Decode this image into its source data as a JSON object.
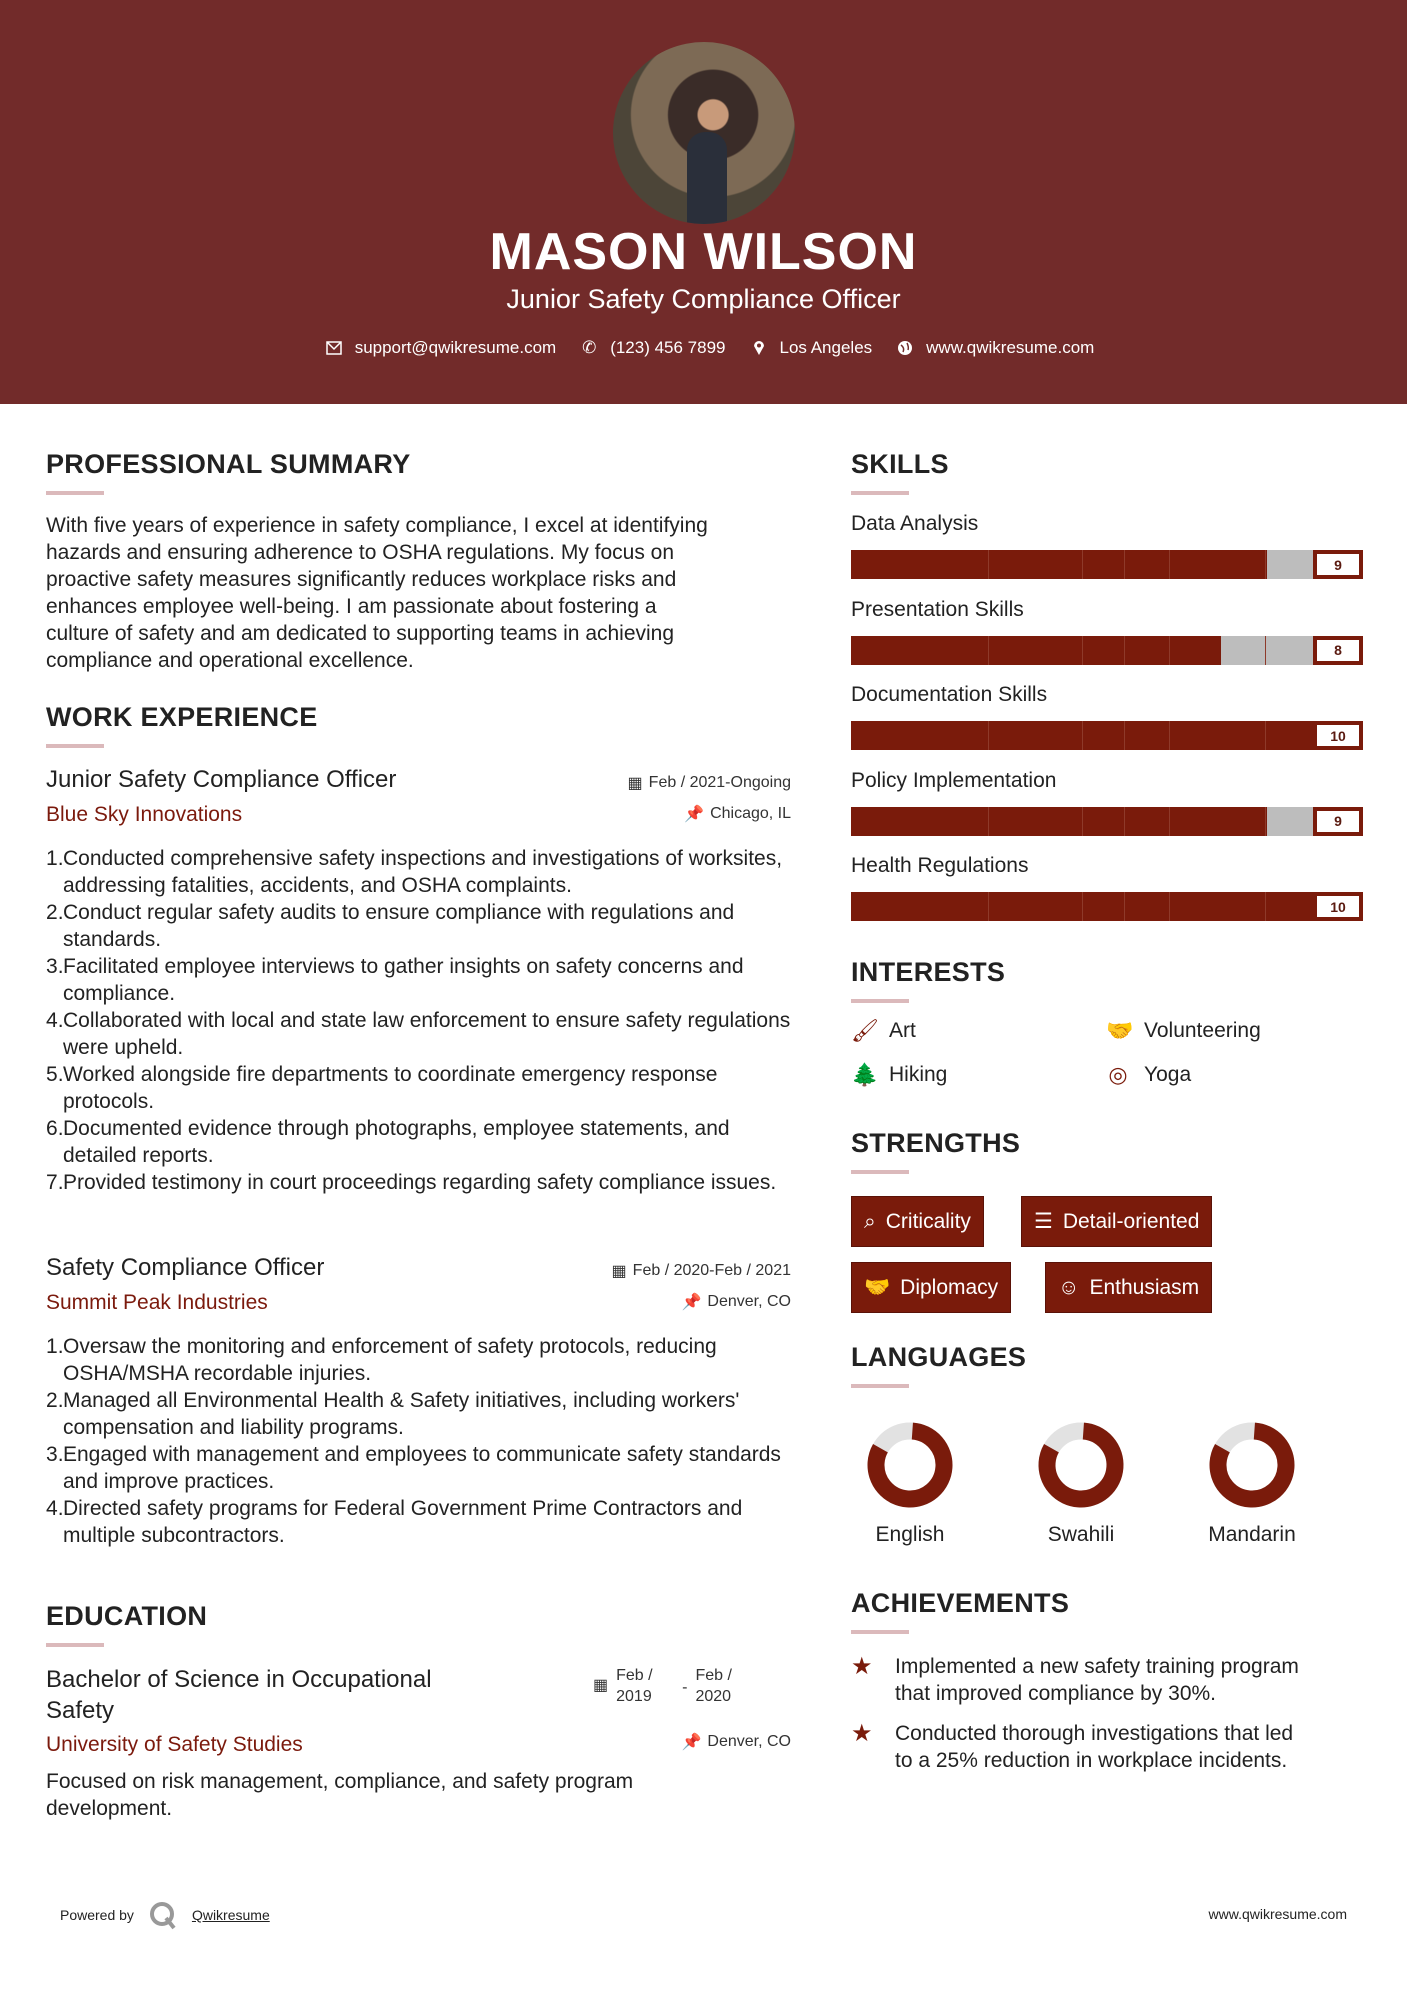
{
  "header": {
    "name": "MASON WILSON",
    "title": "Junior Safety Compliance Officer",
    "contact": {
      "email": "support@qwikresume.com",
      "phone": "(123) 456 7899",
      "location": "Los Angeles",
      "website": "www.qwikresume.com"
    }
  },
  "colors": {
    "header": "#722b2a",
    "accent": "#7a1b0b",
    "underline": "#dbb9bb",
    "empty": "#bdbdbd"
  },
  "summary": {
    "heading": "PROFESSIONAL SUMMARY",
    "lines": [
      "With five years of experience in safety compliance, I excel at identifying",
      "hazards and ensuring adherence to OSHA regulations. My focus on",
      "proactive safety measures significantly reduces workplace risks and",
      "enhances employee well-being. I am passionate about fostering a",
      "culture of safety and am dedicated to supporting teams in achieving",
      "compliance and operational excellence."
    ]
  },
  "experience": {
    "heading": "WORK EXPERIENCE",
    "jobs": [
      {
        "title": "Junior Safety Compliance Officer",
        "company": "Blue Sky Innovations",
        "dates": "Feb / 2021-Ongoing",
        "location": "Chicago, IL",
        "items": [
          "Conducted comprehensive safety inspections and investigations of worksites, addressing fatalities, accidents, and OSHA complaints.",
          "Conduct regular safety audits to ensure compliance with regulations and standards.",
          "Facilitated employee interviews to gather insights on safety concerns and compliance.",
          "Collaborated with local and state law enforcement to ensure safety regulations were upheld.",
          "Worked alongside fire departments to coordinate emergency response protocols.",
          "Documented evidence through photographs, employee statements, and detailed reports.",
          "Provided testimony in court proceedings regarding safety compliance issues."
        ]
      },
      {
        "title": "Safety Compliance Officer",
        "company": "Summit Peak Industries",
        "dates": "Feb / 2020-Feb / 2021",
        "location": "Denver, CO",
        "items": [
          "Oversaw the monitoring and enforcement of safety protocols, reducing OSHA/MSHA recordable injuries.",
          "Managed all Environmental Health & Safety initiatives, including workers' compensation and liability programs.",
          "Engaged with management and employees to communicate safety standards and improve practices.",
          "Directed safety programs for Federal Government Prime Contractors and multiple subcontractors."
        ]
      }
    ]
  },
  "education": {
    "heading": "EDUCATION",
    "degree_lines": [
      "Bachelor of Science in Occupational",
      "Safety"
    ],
    "school": "University of Safety Studies",
    "start": "Feb / 2019",
    "end": "Feb / 2020",
    "separator": "-",
    "location": "Denver, CO",
    "description": "Focused on risk management, compliance, and safety program development."
  },
  "skills": {
    "heading": "SKILLS",
    "max": 10,
    "items": [
      {
        "name": "Data Analysis",
        "level": 9
      },
      {
        "name": "Presentation Skills",
        "level": 8
      },
      {
        "name": "Documentation Skills",
        "level": 10
      },
      {
        "name": "Policy Implementation",
        "level": 9
      },
      {
        "name": "Health Regulations",
        "level": 10
      }
    ]
  },
  "interests": {
    "heading": "INTERESTS",
    "items": [
      {
        "label": "Art",
        "icon": "paintbrush-icon",
        "glyph": "🖌"
      },
      {
        "label": "Volunteering",
        "icon": "handshake-icon",
        "glyph": "🤝"
      },
      {
        "label": "Hiking",
        "icon": "tree-icon",
        "glyph": "🌲"
      },
      {
        "label": "Yoga",
        "icon": "life-ring-icon",
        "glyph": "◎"
      }
    ]
  },
  "strengths": {
    "heading": "STRENGTHS",
    "items": [
      {
        "label": "Criticality",
        "icon": "search-icon",
        "glyph": "⌕"
      },
      {
        "label": "Detail-oriented",
        "icon": "list-icon",
        "glyph": "☰"
      },
      {
        "label": "Diplomacy",
        "icon": "handshake-icon",
        "glyph": "🤝"
      },
      {
        "label": "Enthusiasm",
        "icon": "smile-icon",
        "glyph": "☺"
      }
    ]
  },
  "languages": {
    "heading": "LANGUAGES",
    "items": [
      {
        "name": "English",
        "level": 82
      },
      {
        "name": "Swahili",
        "level": 82
      },
      {
        "name": "Mandarin",
        "level": 82
      }
    ]
  },
  "achievements": {
    "heading": "ACHIEVEMENTS",
    "items": [
      [
        "Implemented a new safety training program",
        "that improved compliance by 30%."
      ],
      [
        "Conducted thorough investigations that led",
        "to a 25% reduction in workplace incidents."
      ]
    ]
  },
  "footer": {
    "powered_by": "Powered by",
    "brand": "Qwikresume",
    "website": "www.qwikresume.com"
  }
}
